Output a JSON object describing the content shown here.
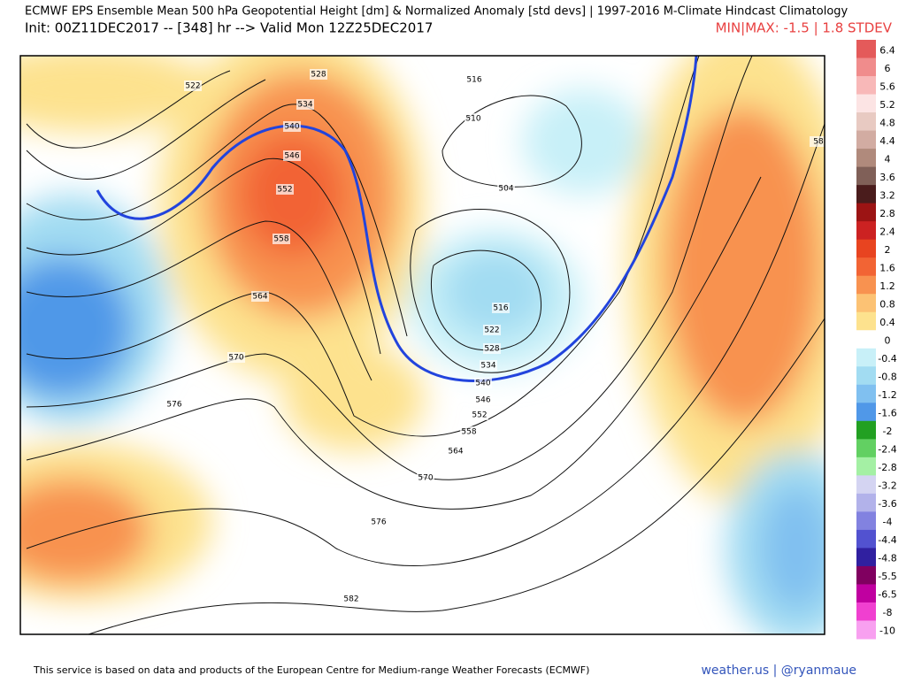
{
  "header": {
    "title": "ECMWF EPS Ensemble Mean 500 hPa Geopotential Height [dm] & Normalized Anomaly [std devs] | 1997-2016 M-Climate Hindcast Climatology",
    "init": "Init: 00Z11DEC2017 -- [348] hr --> Valid Mon 12Z25DEC2017",
    "minmax": "MIN|MAX: -1.5 | 1.8 STDEV"
  },
  "colorbar": [
    {
      "label": "6.4",
      "color": "#e45a5a"
    },
    {
      "label": "6",
      "color": "#f08c8c"
    },
    {
      "label": "5.6",
      "color": "#f8b8b8"
    },
    {
      "label": "5.2",
      "color": "#fce4e4"
    },
    {
      "label": "4.8",
      "color": "#e8cac2"
    },
    {
      "label": "4.4",
      "color": "#d2aca2"
    },
    {
      "label": "4",
      "color": "#b08a7c"
    },
    {
      "label": "3.6",
      "color": "#806058"
    },
    {
      "label": "3.2",
      "color": "#4a1c1c"
    },
    {
      "label": "2.8",
      "color": "#9c1414"
    },
    {
      "label": "2.4",
      "color": "#cc2222"
    },
    {
      "label": "2",
      "color": "#e84420"
    },
    {
      "label": "1.6",
      "color": "#f26434"
    },
    {
      "label": "1.2",
      "color": "#f89250"
    },
    {
      "label": "0.8",
      "color": "#fcc274"
    },
    {
      "label": "0.4",
      "color": "#fde28e"
    },
    {
      "label": "0",
      "color": "#ffffff"
    },
    {
      "label": "-0.4",
      "color": "#c8f0f8"
    },
    {
      "label": "-0.8",
      "color": "#a2dcf2"
    },
    {
      "label": "-1.2",
      "color": "#80c0f0"
    },
    {
      "label": "-1.6",
      "color": "#5098e8"
    },
    {
      "label": "-2",
      "color": "#22a022"
    },
    {
      "label": "-2.4",
      "color": "#62d062"
    },
    {
      "label": "-2.8",
      "color": "#a4f0a4"
    },
    {
      "label": "-3.2",
      "color": "#d4d4f2"
    },
    {
      "label": "-3.6",
      "color": "#b2b2ea"
    },
    {
      "label": "-4",
      "color": "#8282e0"
    },
    {
      "label": "-4.4",
      "color": "#5252d0"
    },
    {
      "label": "-4.8",
      "color": "#3020a0"
    },
    {
      "label": "-5.5",
      "color": "#800060"
    },
    {
      "label": "-6.5",
      "color": "#c000a0"
    },
    {
      "label": "-8",
      "color": "#f040d0"
    },
    {
      "label": "-10",
      "color": "#f8a0f0"
    }
  ],
  "contour_labels": [
    "522",
    "528",
    "534",
    "540",
    "546",
    "552",
    "558",
    "564",
    "570",
    "576",
    "582",
    "516",
    "510",
    "504",
    "516",
    "522",
    "528",
    "534",
    "540",
    "546",
    "552",
    "558",
    "564",
    "570",
    "576",
    "58"
  ],
  "footer": {
    "credit": "This service is based on data and products of the European Centre for Medium-range Weather Forecasts (ECMWF)",
    "brand": "weather.us | @ryanmaue"
  }
}
